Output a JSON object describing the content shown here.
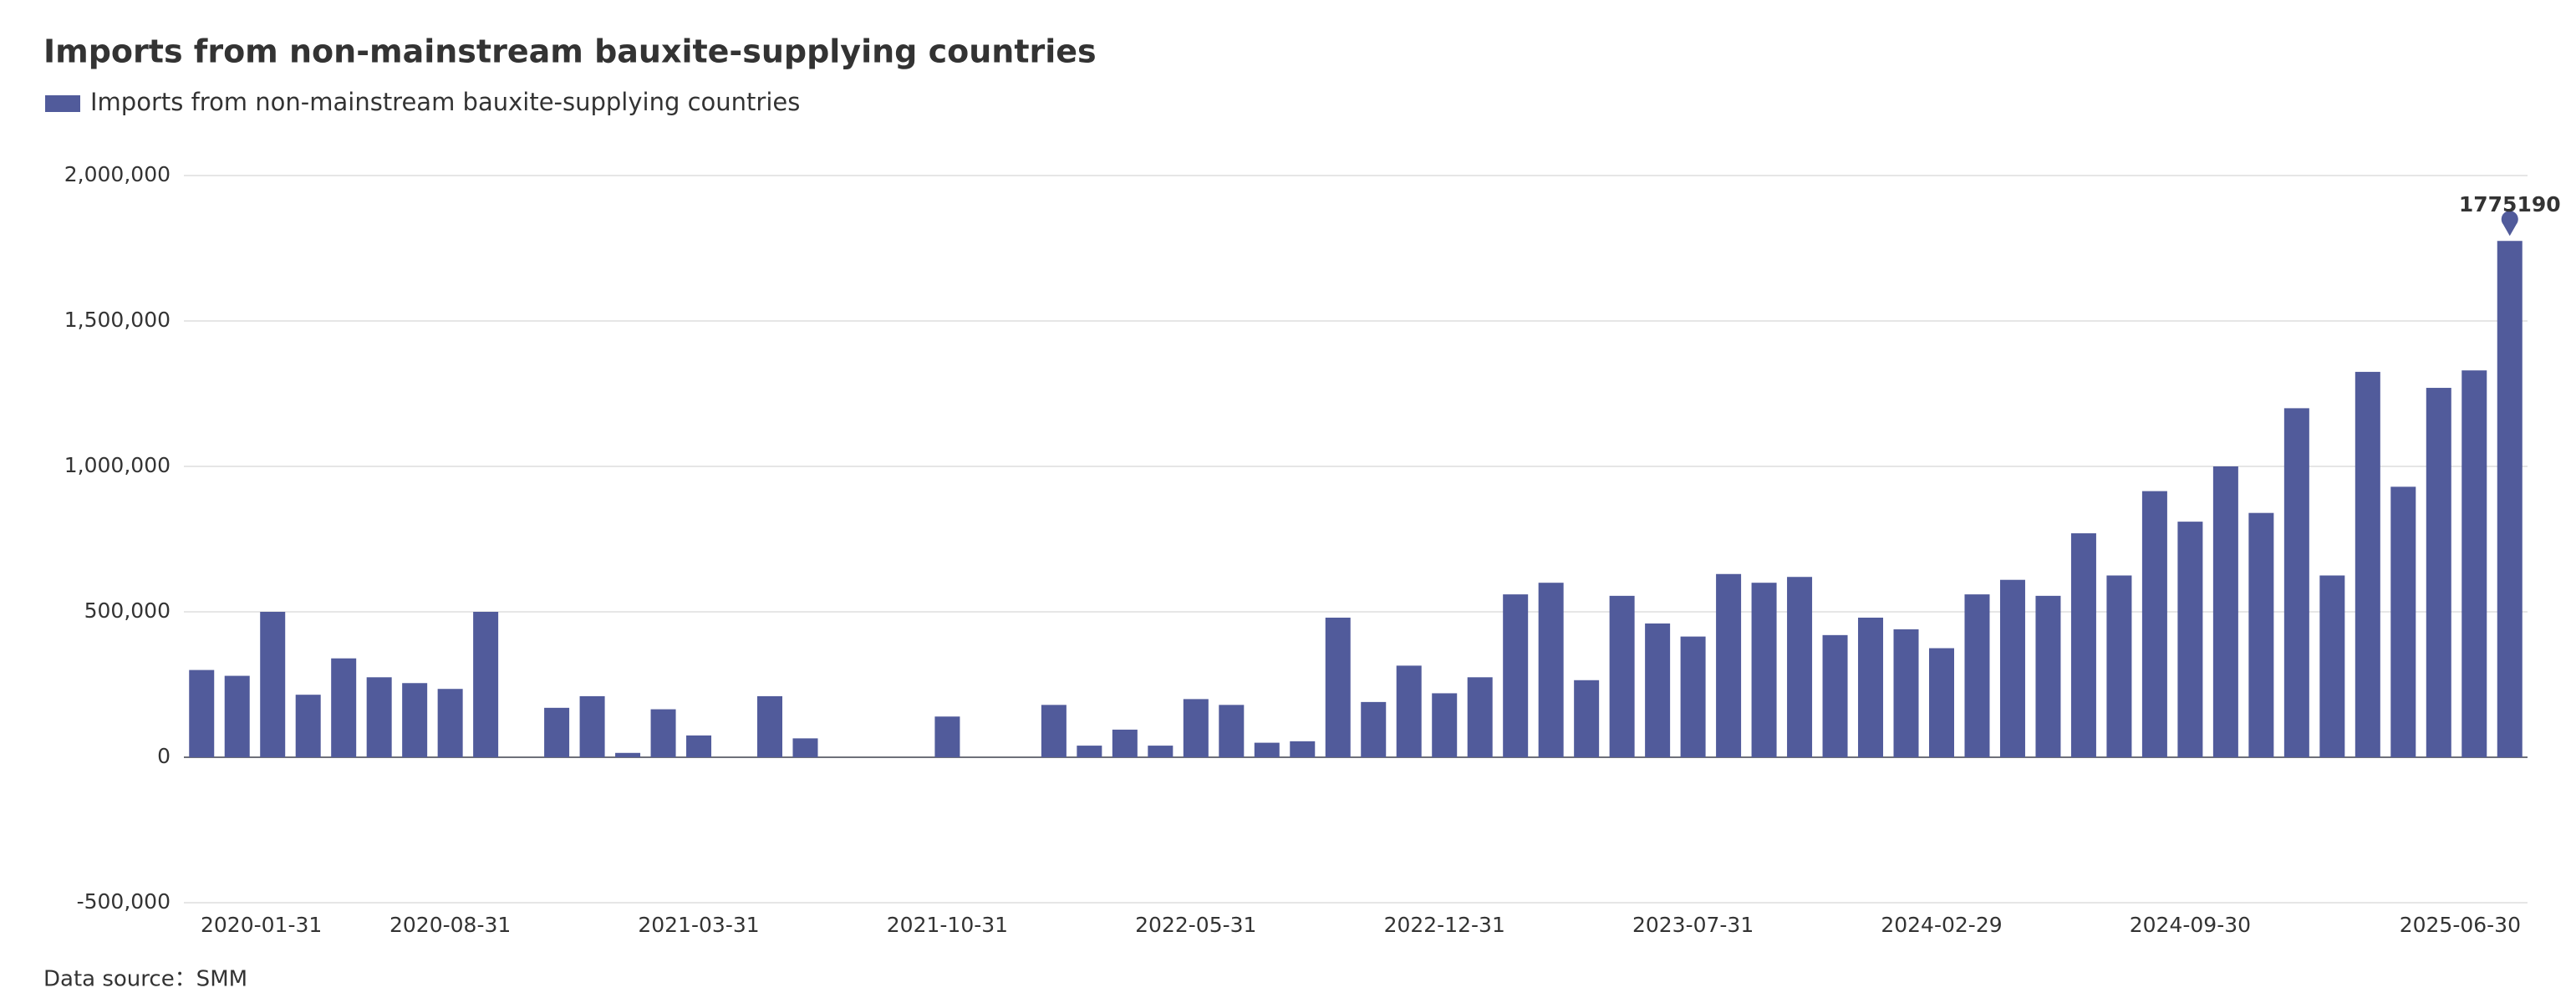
{
  "chart_data": {
    "type": "bar",
    "title": "Imports from non-mainstream bauxite-supplying countries",
    "source": "Data source：SMM",
    "categories": [
      "2020-01-31",
      null,
      null,
      null,
      null,
      null,
      null,
      "2020-08-31",
      null,
      null,
      null,
      null,
      null,
      null,
      "2021-03-31",
      null,
      null,
      null,
      null,
      null,
      null,
      "2021-10-31",
      null,
      null,
      null,
      null,
      null,
      null,
      "2022-05-31",
      null,
      null,
      null,
      null,
      null,
      null,
      "2022-12-31",
      null,
      null,
      null,
      null,
      null,
      null,
      "2023-07-31",
      null,
      null,
      null,
      null,
      null,
      null,
      "2024-02-29",
      null,
      null,
      null,
      null,
      null,
      null,
      "2024-09-30",
      null,
      null,
      null,
      null,
      null,
      null,
      null,
      null,
      "2025-06-30"
    ],
    "series": [
      {
        "name": "Imports from non-mainstream bauxite-supplying countries",
        "color": "#515b9b",
        "values": [
          300000,
          280000,
          500000,
          215000,
          340000,
          275000,
          255000,
          235000,
          500000,
          0,
          170000,
          210000,
          15000,
          165000,
          75000,
          0,
          210000,
          65000,
          0,
          0,
          0,
          140000,
          0,
          0,
          180000,
          40000,
          95000,
          40000,
          200000,
          180000,
          50000,
          55000,
          480000,
          190000,
          315000,
          220000,
          275000,
          560000,
          600000,
          265000,
          555000,
          460000,
          415000,
          630000,
          600000,
          620000,
          420000,
          480000,
          440000,
          375000,
          560000,
          610000,
          555000,
          770000,
          625000,
          915000,
          810000,
          1000000,
          840000,
          1200000,
          625000,
          1325000,
          930000,
          1270000,
          1330000,
          1775190
        ]
      }
    ],
    "ylim": [
      -500000,
      2000000
    ],
    "yticks": [
      {
        "value": -500000,
        "label": "-500,000"
      },
      0,
      {
        "value": 500000,
        "label": "500,000"
      },
      {
        "value": 1000000,
        "label": "1,000,000"
      },
      {
        "value": 1500000,
        "label": "1,500,000"
      },
      {
        "value": 2000000,
        "label": "2,000,000"
      }
    ],
    "grid": true,
    "legend": "top-left"
  }
}
